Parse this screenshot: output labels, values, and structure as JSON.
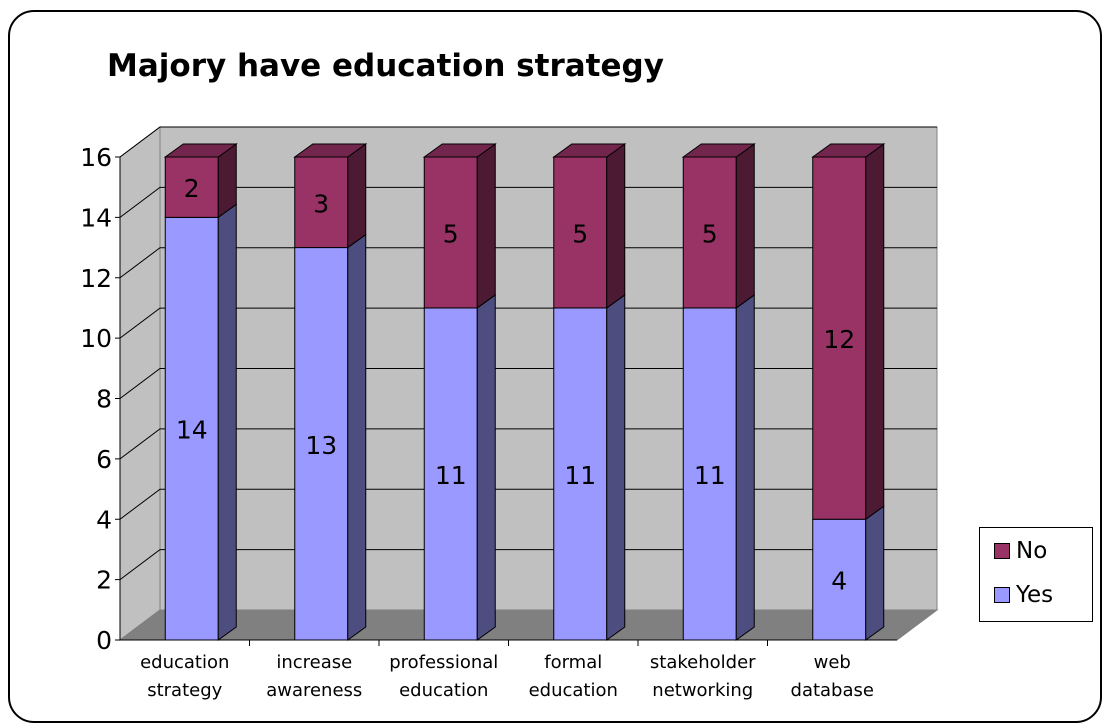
{
  "chart_data": {
    "type": "bar",
    "stacked": true,
    "three_d": true,
    "title": "Majory have education strategy",
    "categories": [
      [
        "education",
        "strategy"
      ],
      [
        "increase",
        "awareness"
      ],
      [
        "professional",
        "education"
      ],
      [
        "formal",
        "education"
      ],
      [
        "stakeholder",
        "networking"
      ],
      [
        "web",
        "database"
      ]
    ],
    "series": [
      {
        "name": "Yes",
        "values": [
          14,
          13,
          11,
          11,
          11,
          4
        ],
        "color": "#9999ff"
      },
      {
        "name": "No",
        "values": [
          2,
          3,
          5,
          5,
          5,
          12
        ],
        "color": "#993366"
      }
    ],
    "ylim": [
      0,
      16
    ],
    "yticks": [
      "0",
      "2",
      "4",
      "6",
      "8",
      "10",
      "12",
      "14",
      "16"
    ],
    "grid": true,
    "legend_position": "right",
    "data_labels": true
  }
}
